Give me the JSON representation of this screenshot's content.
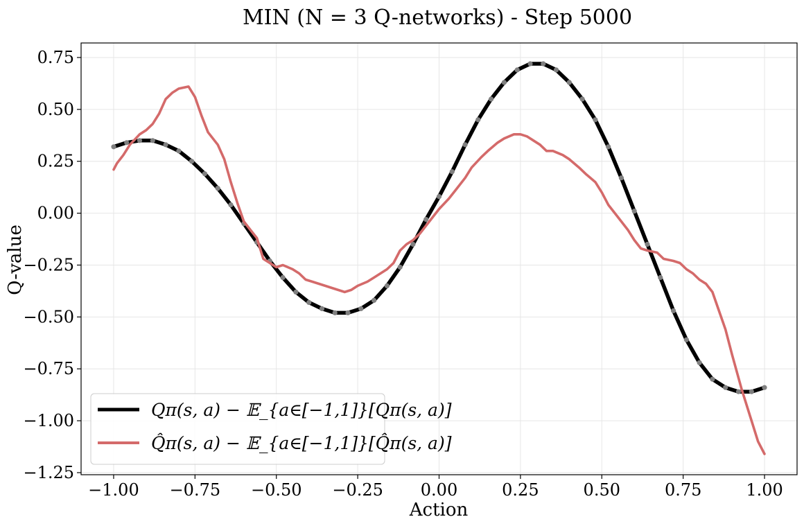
{
  "chart_data": {
    "type": "line",
    "title": "MIN (N = 3 Q-networks) - Step 5000",
    "xlabel": "Action",
    "ylabel": "Q-value",
    "xlim": [
      -1.1,
      1.1
    ],
    "ylim": [
      -1.26,
      0.82
    ],
    "grid": true,
    "legend_position": "lower-left",
    "x_ticks": [
      "−1.00",
      "−0.75",
      "−0.50",
      "−0.25",
      "0.00",
      "0.25",
      "0.50",
      "0.75",
      "1.00"
    ],
    "y_ticks": [
      "−1.25",
      "−1.00",
      "−0.75",
      "−0.50",
      "−0.25",
      "0.00",
      "0.25",
      "0.50",
      "0.75"
    ],
    "series": [
      {
        "name": "Qπ(s, a) − 𝔼_{a∈[−1,1]}[Qπ(s, a)]",
        "color": "#000000",
        "marker_color": "#808080",
        "x": [
          -1.0,
          -0.96,
          -0.92,
          -0.88,
          -0.84,
          -0.8,
          -0.76,
          -0.72,
          -0.68,
          -0.64,
          -0.6,
          -0.56,
          -0.52,
          -0.48,
          -0.44,
          -0.4,
          -0.36,
          -0.32,
          -0.28,
          -0.24,
          -0.2,
          -0.16,
          -0.12,
          -0.08,
          -0.04,
          0.0,
          0.04,
          0.08,
          0.12,
          0.16,
          0.2,
          0.24,
          0.28,
          0.32,
          0.36,
          0.4,
          0.44,
          0.48,
          0.52,
          0.56,
          0.6,
          0.64,
          0.68,
          0.72,
          0.76,
          0.8,
          0.84,
          0.88,
          0.92,
          0.96,
          1.0
        ],
        "values": [
          0.32,
          0.34,
          0.35,
          0.35,
          0.33,
          0.3,
          0.25,
          0.19,
          0.12,
          0.04,
          -0.05,
          -0.14,
          -0.23,
          -0.31,
          -0.38,
          -0.43,
          -0.46,
          -0.48,
          -0.48,
          -0.46,
          -0.42,
          -0.35,
          -0.26,
          -0.15,
          -0.03,
          0.08,
          0.2,
          0.33,
          0.45,
          0.55,
          0.63,
          0.69,
          0.72,
          0.72,
          0.69,
          0.63,
          0.55,
          0.45,
          0.32,
          0.17,
          0.01,
          -0.15,
          -0.31,
          -0.47,
          -0.61,
          -0.72,
          -0.8,
          -0.84,
          -0.86,
          -0.86,
          -0.84
        ]
      },
      {
        "name": "Q̂π(s, a) − 𝔼_{a∈[−1,1]}[Q̂π(s, a)]",
        "color": "#d46a6a",
        "x": [
          -1.0,
          -0.99,
          -0.97,
          -0.95,
          -0.92,
          -0.9,
          -0.88,
          -0.86,
          -0.84,
          -0.82,
          -0.8,
          -0.77,
          -0.75,
          -0.73,
          -0.71,
          -0.68,
          -0.66,
          -0.64,
          -0.62,
          -0.6,
          -0.58,
          -0.56,
          -0.54,
          -0.52,
          -0.5,
          -0.48,
          -0.45,
          -0.43,
          -0.41,
          -0.39,
          -0.37,
          -0.35,
          -0.33,
          -0.31,
          -0.29,
          -0.27,
          -0.25,
          -0.22,
          -0.2,
          -0.18,
          -0.16,
          -0.14,
          -0.12,
          -0.1,
          -0.08,
          -0.06,
          -0.04,
          -0.02,
          0.0,
          0.03,
          0.05,
          0.08,
          0.1,
          0.13,
          0.15,
          0.18,
          0.2,
          0.23,
          0.25,
          0.27,
          0.29,
          0.31,
          0.33,
          0.35,
          0.38,
          0.4,
          0.43,
          0.45,
          0.48,
          0.5,
          0.52,
          0.55,
          0.58,
          0.6,
          0.62,
          0.64,
          0.67,
          0.69,
          0.72,
          0.74,
          0.76,
          0.78,
          0.8,
          0.82,
          0.84,
          0.86,
          0.88,
          0.9,
          0.93,
          0.96,
          0.98,
          1.0
        ],
        "values": [
          0.21,
          0.24,
          0.28,
          0.33,
          0.38,
          0.4,
          0.43,
          0.48,
          0.55,
          0.58,
          0.6,
          0.61,
          0.56,
          0.47,
          0.39,
          0.33,
          0.26,
          0.15,
          0.05,
          -0.04,
          -0.08,
          -0.12,
          -0.22,
          -0.24,
          -0.26,
          -0.25,
          -0.27,
          -0.29,
          -0.32,
          -0.33,
          -0.34,
          -0.35,
          -0.36,
          -0.37,
          -0.38,
          -0.37,
          -0.35,
          -0.33,
          -0.31,
          -0.29,
          -0.27,
          -0.24,
          -0.18,
          -0.15,
          -0.13,
          -0.1,
          -0.06,
          -0.02,
          0.02,
          0.07,
          0.11,
          0.17,
          0.22,
          0.27,
          0.3,
          0.34,
          0.36,
          0.38,
          0.38,
          0.37,
          0.35,
          0.33,
          0.3,
          0.3,
          0.28,
          0.26,
          0.22,
          0.19,
          0.15,
          0.1,
          0.04,
          -0.02,
          -0.08,
          -0.13,
          -0.17,
          -0.18,
          -0.19,
          -0.22,
          -0.23,
          -0.24,
          -0.27,
          -0.29,
          -0.32,
          -0.34,
          -0.38,
          -0.47,
          -0.56,
          -0.68,
          -0.85,
          -1.0,
          -1.1,
          -1.16
        ]
      }
    ]
  }
}
